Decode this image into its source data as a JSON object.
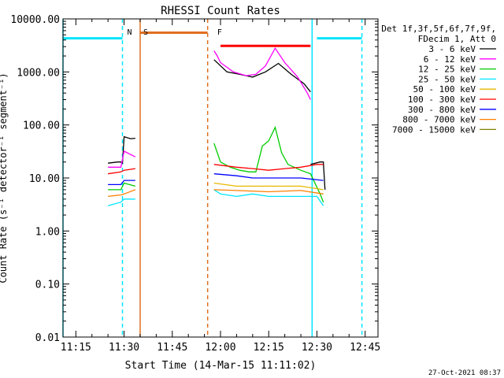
{
  "chart_data": {
    "type": "line",
    "title": "RHESSI Count Rates",
    "xlabel": "Start Time (14-Mar-15 11:11:02)",
    "ylabel": "Count Rate (s⁻¹ detector⁻¹ segment⁻¹)",
    "xlim": [
      "11:11",
      "12:49"
    ],
    "ylim": [
      0.01,
      10000
    ],
    "yscale": "log",
    "x_ticks": [
      "11:15",
      "11:30",
      "11:45",
      "12:00",
      "12:15",
      "12:30",
      "12:45"
    ],
    "y_ticks": [
      "0.01",
      "0.10",
      "1.00",
      "10.00",
      "100.00",
      "1000.00",
      "10000.00"
    ],
    "legend_header": [
      "Det 1f,3f,5f,6f,7f,9f,",
      "FDecim 1, Att 0"
    ],
    "legend_placement": "top-right outside",
    "series": [
      {
        "name": "3 - 6 keV",
        "color": "#000000",
        "segments": [
          [
            [
              "11:25",
              19
            ],
            [
              "11:28",
              20
            ],
            [
              "11:29",
              20
            ],
            [
              "11:29:30",
              19
            ],
            [
              "11:30",
              60
            ],
            [
              "11:32",
              55
            ],
            [
              "11:33:30",
              56
            ]
          ],
          [
            [
              "11:58",
              1700
            ],
            [
              "12:02",
              1000
            ],
            [
              "12:06",
              900
            ],
            [
              "12:10",
              800
            ],
            [
              "12:14",
              1000
            ],
            [
              "12:18",
              1450
            ],
            [
              "12:22",
              900
            ],
            [
              "12:26",
              600
            ],
            [
              "12:28",
              420
            ]
          ],
          [
            [
              "12:28",
              18
            ],
            [
              "12:31",
              20
            ],
            [
              "12:32",
              20
            ],
            [
              "12:32:30",
              6
            ]
          ]
        ]
      },
      {
        "name": "6 - 12 keV",
        "color": "#ff00ff",
        "segments": [
          [
            [
              "11:25",
              16
            ],
            [
              "11:29",
              16
            ],
            [
              "11:30",
              32
            ],
            [
              "11:33:30",
              25
            ]
          ],
          [
            [
              "11:58",
              2500
            ],
            [
              "11:59",
              2000
            ],
            [
              "12:00",
              1500
            ],
            [
              "12:04",
              1000
            ],
            [
              "12:08",
              850
            ],
            [
              "12:11",
              900
            ],
            [
              "12:14",
              1300
            ],
            [
              "12:17",
              2800
            ],
            [
              "12:20",
              1500
            ],
            [
              "12:24",
              800
            ],
            [
              "12:27",
              400
            ],
            [
              "12:28",
              300
            ]
          ]
        ]
      },
      {
        "name": "12 - 25 keV",
        "color": "#00cc00",
        "segments": [
          [
            [
              "11:25",
              6
            ],
            [
              "11:29",
              6
            ],
            [
              "11:30",
              8
            ],
            [
              "11:33:30",
              7
            ]
          ],
          [
            [
              "11:58",
              45
            ],
            [
              "12:00",
              20
            ],
            [
              "12:03",
              16
            ],
            [
              "12:06",
              14
            ],
            [
              "12:09",
              13
            ],
            [
              "12:11",
              13
            ],
            [
              "12:13",
              40
            ],
            [
              "12:15",
              50
            ],
            [
              "12:17",
              90
            ],
            [
              "12:19",
              30
            ],
            [
              "12:21",
              18
            ],
            [
              "12:25",
              14
            ],
            [
              "12:28",
              12
            ],
            [
              "12:31",
              5
            ],
            [
              "12:32",
              3.5
            ]
          ]
        ]
      },
      {
        "name": "25 - 50 keV",
        "color": "#00e5ff",
        "segments": [
          [
            [
              "11:25",
              3
            ],
            [
              "11:29",
              3.5
            ],
            [
              "11:30",
              4
            ],
            [
              "11:33:30",
              4
            ]
          ],
          [
            [
              "11:58",
              6
            ],
            [
              "12:00",
              5
            ],
            [
              "12:05",
              4.5
            ],
            [
              "12:10",
              5
            ],
            [
              "12:15",
              4.5
            ],
            [
              "12:20",
              4.5
            ],
            [
              "12:25",
              4.5
            ],
            [
              "12:30",
              4.5
            ],
            [
              "12:32",
              3
            ]
          ]
        ]
      },
      {
        "name": "50 - 100 keV",
        "color": "#e6b800",
        "segments": [
          [
            [
              "11:58",
              8
            ],
            [
              "12:05",
              7
            ],
            [
              "12:15",
              7
            ],
            [
              "12:25",
              7
            ],
            [
              "12:32",
              6
            ]
          ]
        ]
      },
      {
        "name": "100 - 300 keV",
        "color": "#ff0000",
        "segments": [
          [
            [
              "11:25",
              12
            ],
            [
              "11:29",
              13
            ],
            [
              "11:30",
              14
            ],
            [
              "11:33:30",
              15
            ]
          ],
          [
            [
              "11:58",
              18
            ],
            [
              "12:05",
              16
            ],
            [
              "12:10",
              15
            ],
            [
              "12:15",
              14
            ],
            [
              "12:20",
              15
            ],
            [
              "12:25",
              16
            ],
            [
              "12:30",
              18
            ],
            [
              "12:32",
              18
            ]
          ]
        ]
      },
      {
        "name": "300 - 800 keV",
        "color": "#0000ff",
        "segments": [
          [
            [
              "11:25",
              7.5
            ],
            [
              "11:29",
              7.5
            ],
            [
              "11:30",
              9
            ],
            [
              "11:33:30",
              9
            ]
          ],
          [
            [
              "11:58",
              12
            ],
            [
              "12:05",
              11
            ],
            [
              "12:10",
              10
            ],
            [
              "12:15",
              10
            ],
            [
              "12:20",
              10
            ],
            [
              "12:25",
              10
            ],
            [
              "12:32",
              9
            ]
          ]
        ]
      },
      {
        "name": "800 - 7000 keV",
        "color": "#ff7f00",
        "segments": [
          [
            [
              "11:25",
              4.5
            ],
            [
              "11:29",
              4.8
            ],
            [
              "11:30",
              5
            ],
            [
              "11:33:30",
              6
            ]
          ],
          [
            [
              "11:58",
              6
            ],
            [
              "12:05",
              5.8
            ],
            [
              "12:15",
              5.5
            ],
            [
              "12:25",
              5.8
            ],
            [
              "12:32",
              5
            ]
          ]
        ]
      },
      {
        "name": "7000 - 15000 keV",
        "color": "#808000",
        "segments": []
      }
    ],
    "annotations": [
      {
        "label": "N",
        "color": "#00d8ff",
        "x": "11:30"
      },
      {
        "label": "S",
        "color": "#e07020",
        "x": "11:35"
      },
      {
        "label": "F",
        "color": "#ff0000",
        "x": "11:58"
      }
    ],
    "flag_bars": [
      {
        "color": "#00e5ff",
        "x": [
          "11:11",
          "11:29:30"
        ],
        "y": 4300
      },
      {
        "color": "#e07020",
        "x": [
          "11:35",
          "11:56"
        ],
        "y": 5500
      },
      {
        "color": "#ff0000",
        "x": [
          "12:00",
          "12:28"
        ],
        "y": 3100
      },
      {
        "color": "#00e5ff",
        "x": [
          "12:30",
          "12:44"
        ],
        "y": 4300
      }
    ],
    "vertical_lines": [
      {
        "x": "11:11",
        "color": "#00e5ff",
        "style": "solid"
      },
      {
        "x": "11:29:30",
        "color": "#00e5ff",
        "style": "dashed"
      },
      {
        "x": "11:35",
        "color": "#e07020",
        "style": "solid"
      },
      {
        "x": "11:56",
        "color": "#e07020",
        "style": "dashed"
      },
      {
        "x": "12:28:30",
        "color": "#00e5ff",
        "style": "solid"
      },
      {
        "x": "12:44",
        "color": "#00e5ff",
        "style": "dashed"
      }
    ],
    "timestamp": "27-Oct-2021 08:37"
  }
}
